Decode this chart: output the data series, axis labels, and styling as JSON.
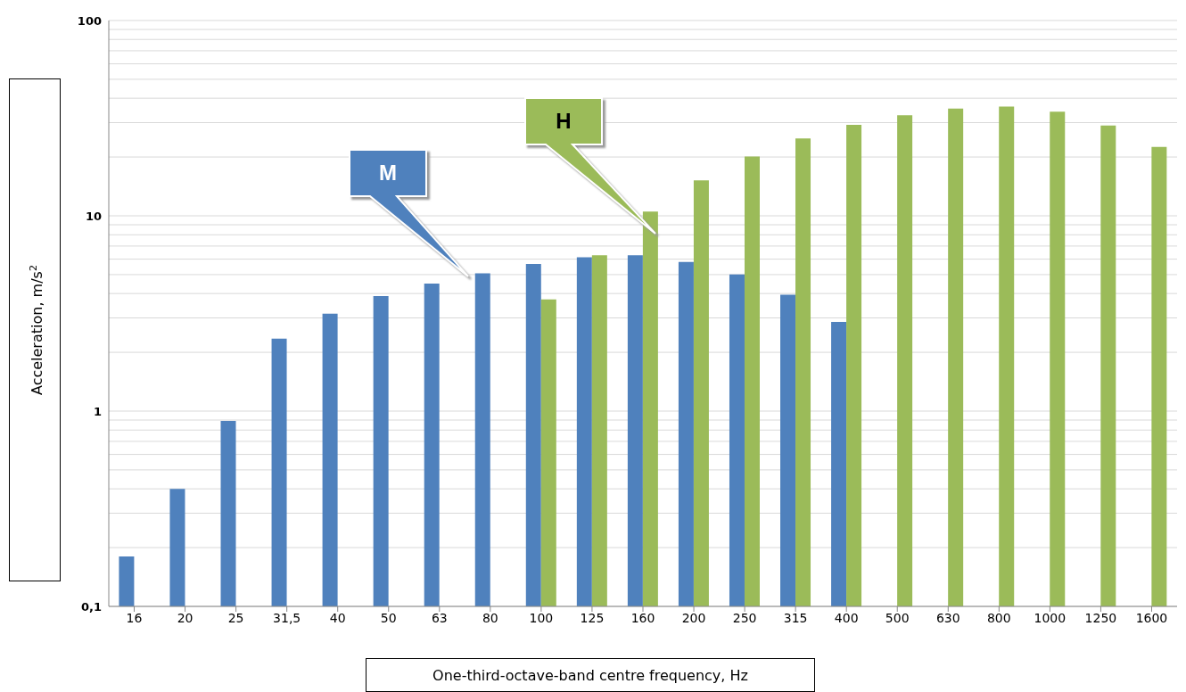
{
  "chart_data": {
    "type": "bar",
    "xlabel": "One-third-octave-band centre frequency, Hz",
    "ylabel": "Acceleration, m/s$^{2}$",
    "categories": [
      "16",
      "20",
      "25",
      "31,5",
      "40",
      "50",
      "63",
      "80",
      "100",
      "125",
      "160",
      "200",
      "250",
      "315",
      "400",
      "500",
      "630",
      "800",
      "1000",
      "1250",
      "1600"
    ],
    "series": [
      {
        "color": "#4f81bd",
        "values": [
          0.18,
          0.4,
          0.89,
          2.35,
          3.15,
          3.88,
          4.5,
          5.07,
          5.67,
          6.13,
          6.28,
          5.81,
          5.01,
          3.94,
          2.86,
          null,
          null,
          null,
          null,
          null,
          null
        ]
      },
      {
        "color": "#9bbb59",
        "values": [
          null,
          null,
          null,
          null,
          null,
          null,
          null,
          null,
          3.73,
          6.28,
          10.5,
          15.2,
          20.1,
          24.9,
          29.2,
          32.7,
          35.4,
          36.3,
          34.1,
          29.0,
          22.5
        ]
      }
    ],
    "log": "y",
    "ylim": [
      0.1,
      100
    ],
    "yticks": [
      {
        "value": 0.1,
        "label": "0,1"
      },
      {
        "value": 0.2,
        "label": null
      },
      {
        "value": 0.3,
        "label": null
      },
      {
        "value": 0.4,
        "label": null
      },
      {
        "value": 0.5,
        "label": null
      },
      {
        "value": 0.6,
        "label": null
      },
      {
        "value": 0.7,
        "label": null
      },
      {
        "value": 0.8,
        "label": null
      },
      {
        "value": 0.9,
        "label": null
      },
      1,
      {
        "value": 2,
        "label": null
      },
      {
        "value": 3,
        "label": null
      },
      {
        "value": 4,
        "label": null
      },
      {
        "value": 5,
        "label": null
      },
      {
        "value": 6,
        "label": null
      },
      {
        "value": 7,
        "label": null
      },
      {
        "value": 8,
        "label": null
      },
      {
        "value": 9,
        "label": null
      },
      10,
      {
        "value": 20,
        "label": null
      },
      {
        "value": 30,
        "label": null
      },
      {
        "value": 40,
        "label": null
      },
      {
        "value": 50,
        "label": null
      },
      {
        "value": 60,
        "label": null
      },
      {
        "value": 70,
        "label": null
      },
      {
        "value": 80,
        "label": null
      },
      {
        "value": 90,
        "label": null
      },
      100
    ],
    "grid": "y",
    "annotations": [
      "M",
      "H"
    ]
  }
}
